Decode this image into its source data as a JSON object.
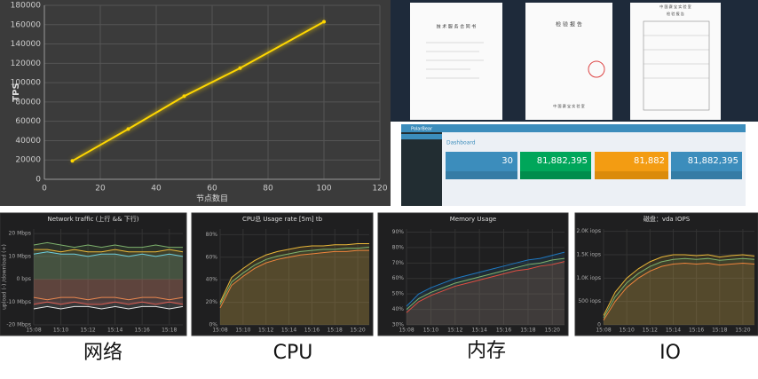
{
  "chart_data": [
    {
      "type": "line",
      "ylabel": "TPS",
      "xlabel": "节点数目",
      "color": "#ffd700",
      "x": [
        10,
        30,
        50,
        70,
        100
      ],
      "values": [
        19000,
        52000,
        86000,
        115000,
        163000
      ],
      "xlim": [
        0,
        120
      ],
      "xticks": [
        0,
        20,
        40,
        60,
        80,
        100,
        120
      ],
      "ylim": [
        0,
        180000
      ],
      "yticks": [
        0,
        20000,
        40000,
        60000,
        80000,
        100000,
        120000,
        140000,
        160000,
        180000
      ],
      "grid": true
    },
    {
      "type": "timeseries",
      "title": "Network traffic (上行 && 下行)",
      "ylabel": "upload (-) /download (+)",
      "x": [
        "15:08",
        "15:09",
        "15:10",
        "15:11",
        "15:12",
        "15:13",
        "15:14",
        "15:15",
        "15:16",
        "15:17",
        "15:18",
        "15:19"
      ],
      "xticks": [
        "15:08",
        "15:10",
        "15:12",
        "15:14",
        "15:16",
        "15:18"
      ],
      "xlim": [
        "15:08",
        "15:19"
      ],
      "ylim": [
        -20,
        22
      ],
      "yticks": [
        {
          "value": -20,
          "label": "-20 Mbps"
        },
        {
          "value": -10,
          "label": "-10 Mbps"
        },
        {
          "value": 0,
          "label": "0 bps"
        },
        {
          "value": 10,
          "label": "10 Mbps"
        },
        {
          "value": 20,
          "label": "20 Mbps"
        }
      ],
      "series": [
        {
          "color": "#7eb26d",
          "values": [
            15,
            16,
            15,
            14,
            15,
            14,
            15,
            14,
            14,
            15,
            14,
            14
          ]
        },
        {
          "color": "#eab839",
          "values": [
            13,
            13,
            12,
            13,
            12,
            12,
            13,
            12,
            12,
            12,
            13,
            12
          ]
        },
        {
          "color": "#6ed0e0",
          "values": [
            11,
            12,
            11,
            11,
            10,
            11,
            11,
            10,
            11,
            10,
            11,
            10
          ]
        },
        {
          "color": "#ef843c",
          "values": [
            -8,
            -9,
            -8,
            -8,
            -9,
            -8,
            -8,
            -9,
            -8,
            -8,
            -9,
            -8
          ]
        },
        {
          "color": "#e24d42",
          "values": [
            -11,
            -10,
            -11,
            -10,
            -11,
            -11,
            -10,
            -11,
            -10,
            -11,
            -10,
            -11
          ]
        },
        {
          "color": "#e5e5e5",
          "values": [
            -13,
            -12,
            -13,
            -12,
            -12,
            -13,
            -12,
            -13,
            -12,
            -12,
            -13,
            -12
          ]
        }
      ]
    },
    {
      "type": "timeseries",
      "title": "CPU总 Usage rate [5m] tb",
      "x": [
        "15:08",
        "15:09",
        "15:10",
        "15:11",
        "15:12",
        "15:13",
        "15:14",
        "15:15",
        "15:16",
        "15:17",
        "15:18",
        "15:19",
        "15:20",
        "15:21"
      ],
      "xticks": [
        "15:08",
        "15:10",
        "15:12",
        "15:14",
        "15:16",
        "15:18",
        "15:20"
      ],
      "xlim": [
        "15:08",
        "15:21"
      ],
      "ylim": [
        0,
        85
      ],
      "yticks": [
        {
          "value": 0,
          "label": "0%"
        },
        {
          "value": 20,
          "label": "20%"
        },
        {
          "value": 40,
          "label": "40%"
        },
        {
          "value": 60,
          "label": "60%"
        },
        {
          "value": 80,
          "label": "80%"
        }
      ],
      "series": [
        {
          "color": "#eab839",
          "values": [
            20,
            42,
            50,
            57,
            62,
            65,
            67,
            69,
            70,
            70,
            71,
            71,
            72,
            72
          ]
        },
        {
          "color": "#7eb26d",
          "values": [
            18,
            38,
            46,
            53,
            58,
            61,
            63,
            65,
            66,
            67,
            67,
            68,
            68,
            69
          ]
        },
        {
          "color": "#ef843c",
          "values": [
            15,
            35,
            43,
            50,
            55,
            58,
            60,
            62,
            63,
            64,
            65,
            65,
            66,
            66
          ]
        }
      ]
    },
    {
      "type": "timeseries",
      "title": "Memory Usage",
      "x": [
        "15:08",
        "15:09",
        "15:10",
        "15:11",
        "15:12",
        "15:13",
        "15:14",
        "15:15",
        "15:16",
        "15:17",
        "15:18",
        "15:19",
        "15:20",
        "15:21"
      ],
      "xticks": [
        "15:08",
        "15:10",
        "15:12",
        "15:14",
        "15:16",
        "15:18",
        "15:20"
      ],
      "xlim": [
        "15:08",
        "15:21"
      ],
      "ylim": [
        30,
        92
      ],
      "yticks": [
        {
          "value": 30,
          "label": "30%"
        },
        {
          "value": 40,
          "label": "40%"
        },
        {
          "value": 50,
          "label": "50%"
        },
        {
          "value": 60,
          "label": "60%"
        },
        {
          "value": 70,
          "label": "70%"
        },
        {
          "value": 80,
          "label": "80%"
        },
        {
          "value": 90,
          "label": "90%"
        }
      ],
      "series": [
        {
          "color": "#1f78c1",
          "values": [
            42,
            50,
            54,
            57,
            60,
            62,
            64,
            66,
            68,
            70,
            72,
            73,
            75,
            77
          ]
        },
        {
          "color": "#7eb26d",
          "values": [
            40,
            47,
            51,
            54,
            57,
            59,
            61,
            63,
            65,
            67,
            69,
            70,
            72,
            73
          ]
        },
        {
          "color": "#e24d42",
          "values": [
            38,
            45,
            49,
            52,
            55,
            57,
            59,
            61,
            63,
            65,
            66,
            68,
            69,
            71
          ]
        }
      ]
    },
    {
      "type": "timeseries",
      "title": "磁盘：vda IOPS",
      "x": [
        "15:08",
        "15:09",
        "15:10",
        "15:11",
        "15:12",
        "15:13",
        "15:14",
        "15:15",
        "15:16",
        "15:17",
        "15:18",
        "15:19",
        "15:20",
        "15:21"
      ],
      "xticks": [
        "15:08",
        "15:10",
        "15:12",
        "15:14",
        "15:16",
        "15:18",
        "15:20"
      ],
      "xlim": [
        "15:08",
        "15:21"
      ],
      "ylim": [
        0,
        2050
      ],
      "yticks": [
        {
          "value": 0,
          "label": "0"
        },
        {
          "value": 500,
          "label": "500 iops"
        },
        {
          "value": 1000,
          "label": "1.0K iops"
        },
        {
          "value": 1500,
          "label": "1.5K iops"
        },
        {
          "value": 2000,
          "label": "2.0K iops"
        }
      ],
      "series": [
        {
          "color": "#eab839",
          "values": [
            200,
            700,
            1000,
            1200,
            1350,
            1450,
            1500,
            1500,
            1480,
            1500,
            1450,
            1480,
            1500,
            1470
          ]
        },
        {
          "color": "#7eb26d",
          "values": [
            150,
            600,
            900,
            1100,
            1250,
            1350,
            1400,
            1420,
            1400,
            1420,
            1380,
            1400,
            1420,
            1400
          ]
        },
        {
          "color": "#ef843c",
          "values": [
            100,
            500,
            800,
            1000,
            1150,
            1250,
            1300,
            1320,
            1300,
            1320,
            1280,
            1300,
            1320,
            1300
          ]
        }
      ]
    }
  ],
  "documents": [
    {
      "title": "技 术 服 务 合 同 书"
    },
    {
      "title": "检 验 报 告",
      "issuer": "中 国 赛 宝 实 验 室"
    },
    {
      "title": "检 验 报 告",
      "issuer": "中 国 赛 宝 实 验 室"
    }
  ],
  "dashboard": {
    "brand": "PolarBear",
    "title": "Dashboard",
    "cards": [
      "30",
      "81,882,395",
      "81,882",
      "81,882,395"
    ]
  },
  "captions": [
    "网络",
    "CPU",
    "内存",
    "IO"
  ]
}
